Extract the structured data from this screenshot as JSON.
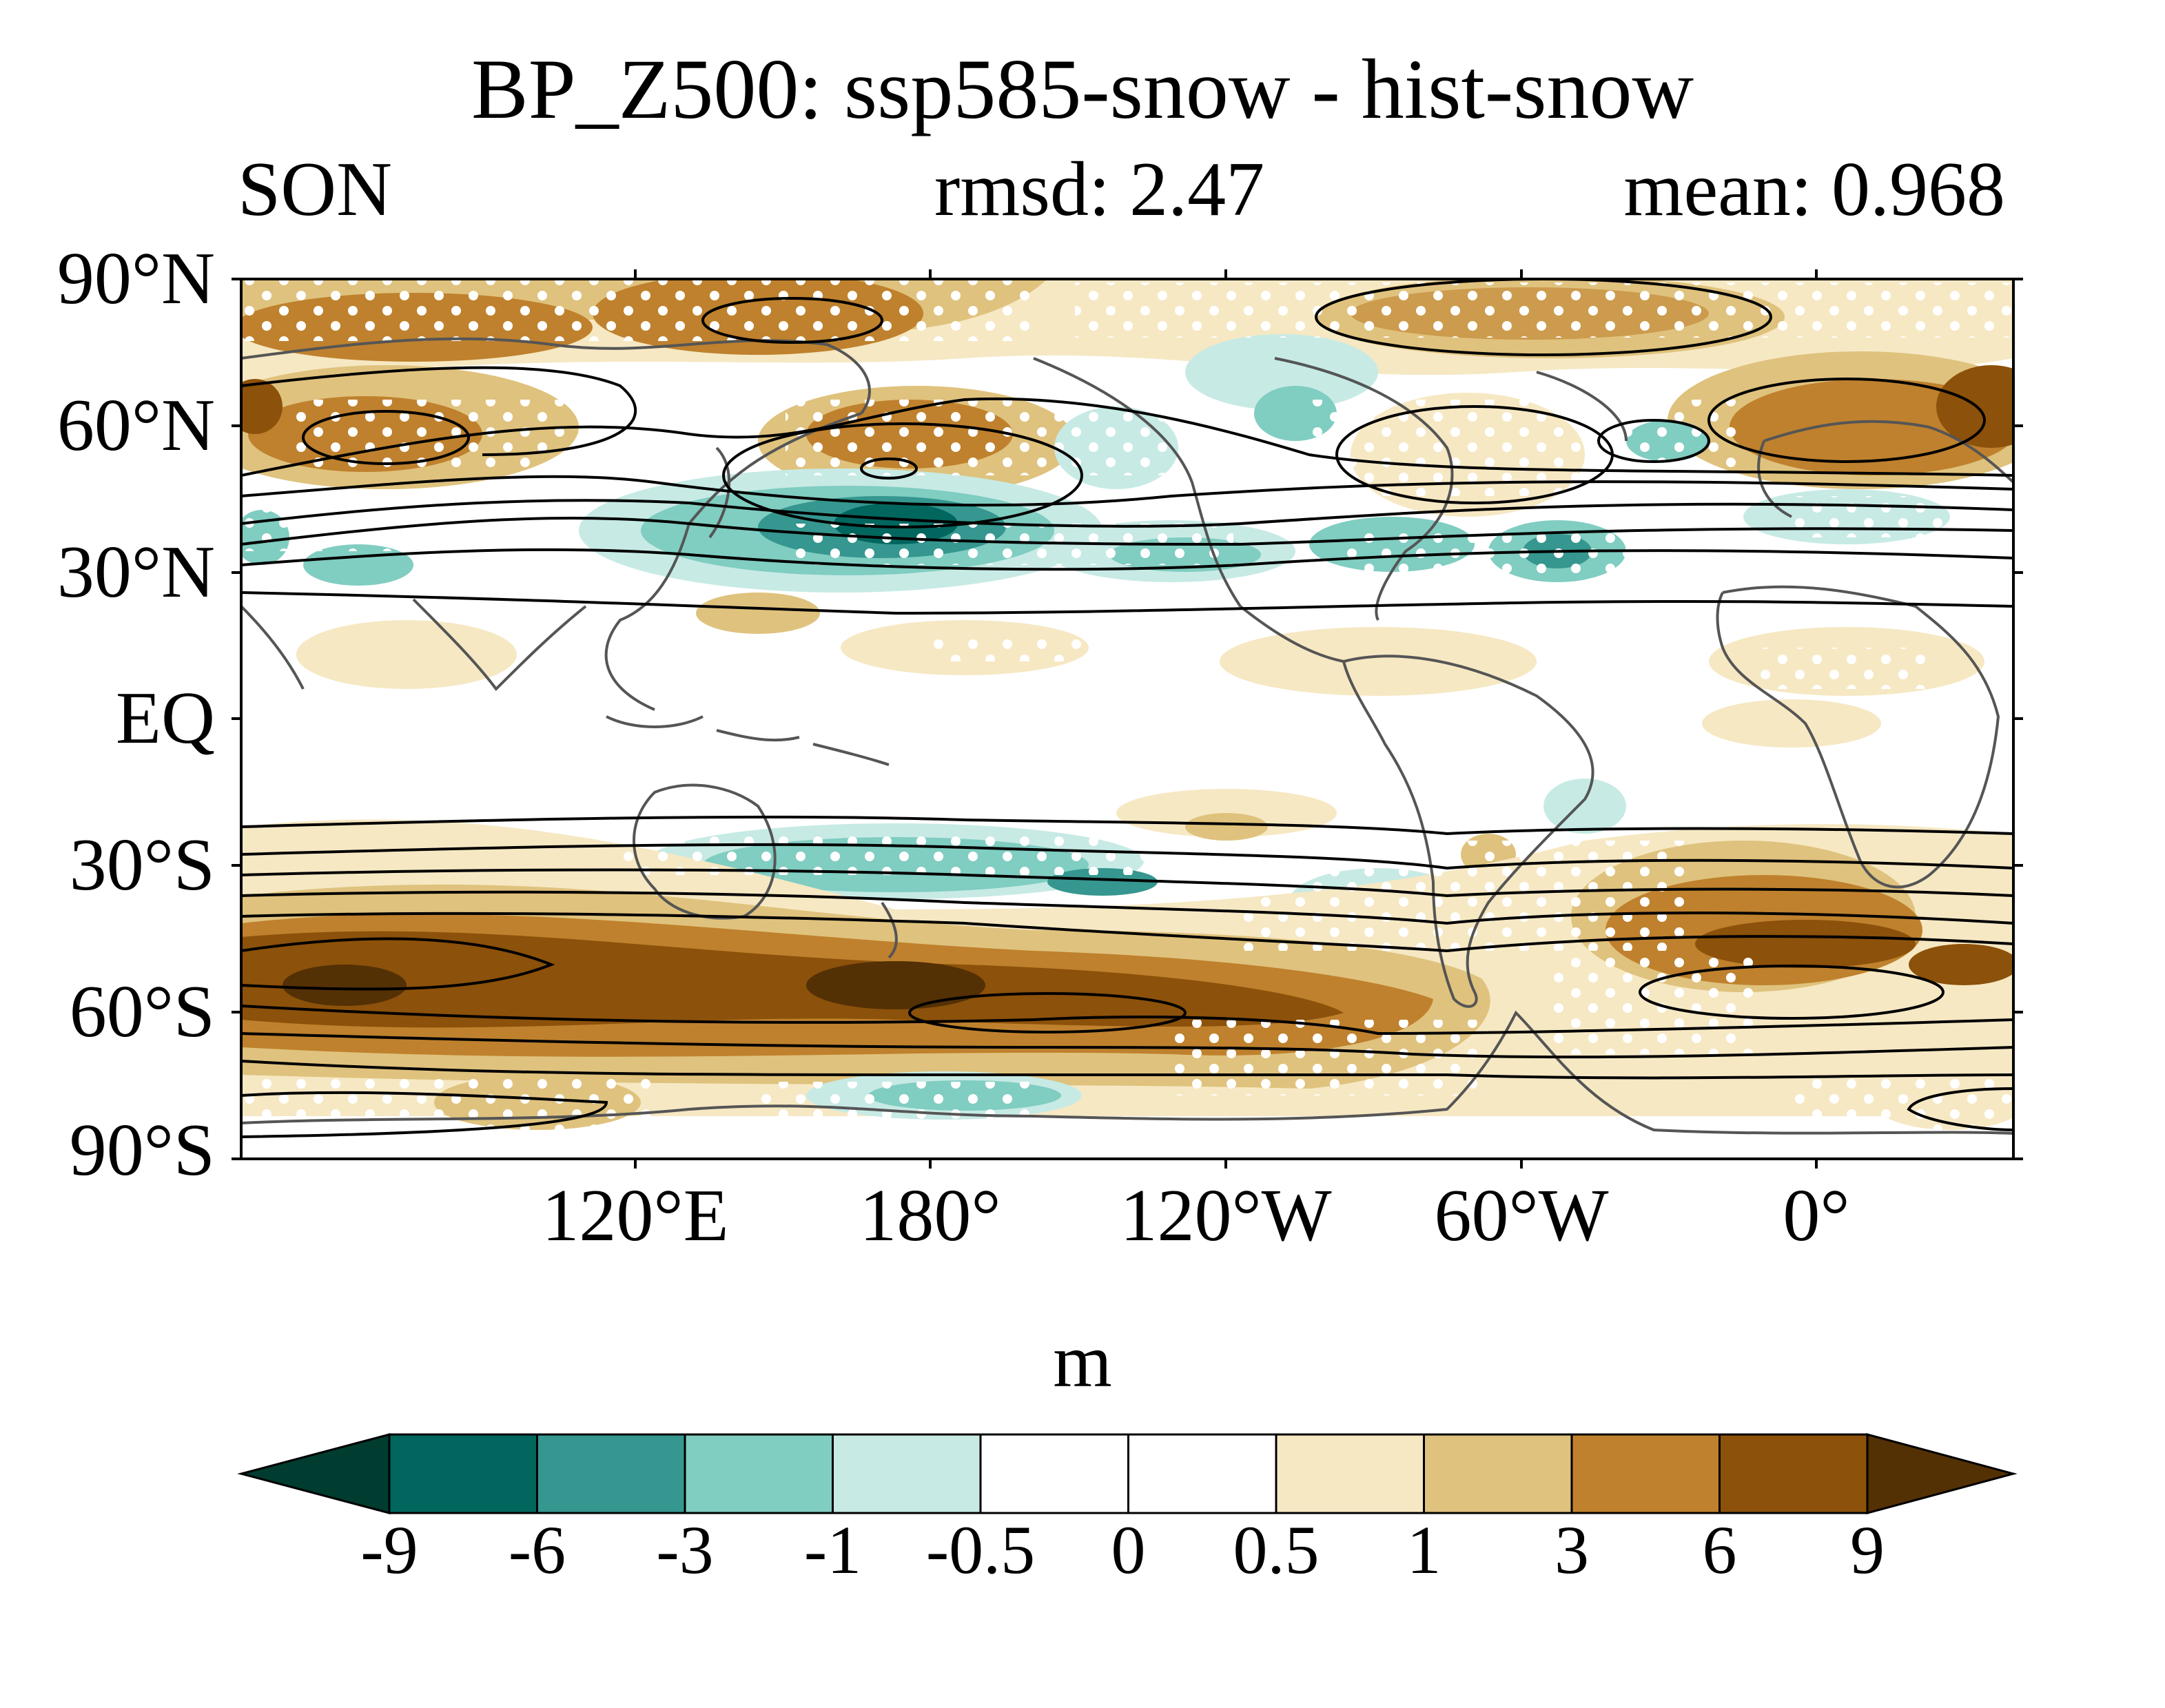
{
  "title": "BP_Z500: ssp585-snow - hist-snow",
  "season": "SON",
  "rmsd": "rmsd: 2.47",
  "mean": "mean: 0.968",
  "lat_labels": [
    "90°N",
    "60°N",
    "30°N",
    "EQ",
    "30°S",
    "60°S",
    "90°S"
  ],
  "lon_labels": [
    "120°E",
    "180°",
    "120°W",
    "60°W",
    "0°"
  ],
  "colorbar": {
    "unit": "m",
    "levels": [
      "-9",
      "-6",
      "-3",
      "-1",
      "-0.5",
      "0",
      "0.5",
      "1",
      "3",
      "6",
      "9"
    ],
    "colors": [
      "#003c30",
      "#01665e",
      "#35978f",
      "#80cdc1",
      "#c7eae5",
      "#ffffff",
      "#ffffff",
      "#f6e8c3",
      "#dfc27d",
      "#bf812d",
      "#8c510a",
      "#543005"
    ]
  },
  "colors": {
    "coast": "#555555",
    "contour": "#000000",
    "stipple": "#ffffff"
  }
}
